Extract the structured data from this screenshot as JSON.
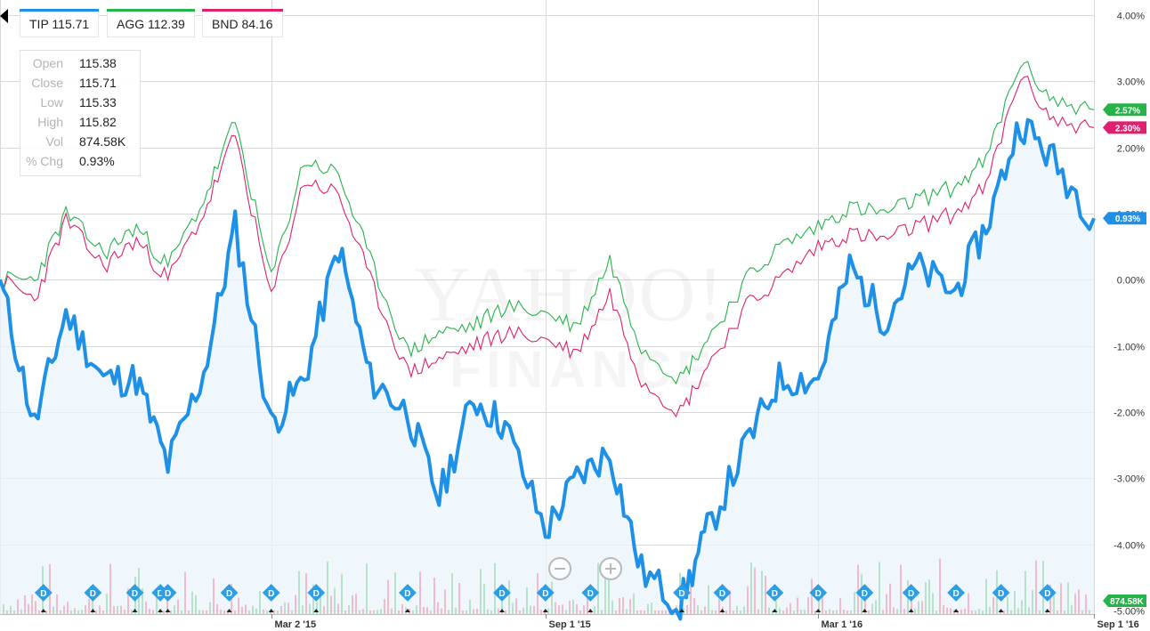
{
  "legend": [
    {
      "symbol": "TIP",
      "value": "115.71",
      "color": "#1e90e6"
    },
    {
      "symbol": "AGG",
      "value": "112.39",
      "color": "#26b34a"
    },
    {
      "symbol": "BND",
      "value": "84.16",
      "color": "#e0206e"
    }
  ],
  "ohlc": {
    "rows": [
      {
        "key": "Open",
        "value": "115.38"
      },
      {
        "key": "Close",
        "value": "115.71"
      },
      {
        "key": "Low",
        "value": "115.33"
      },
      {
        "key": "High",
        "value": "115.82"
      },
      {
        "key": "Vol",
        "value": "874.58K"
      },
      {
        "key": "% Chg",
        "value": "0.93%"
      }
    ]
  },
  "watermark": {
    "line1": "YAHOO!",
    "line2": "FINANCE"
  },
  "zoom": {
    "out": "zoom-out",
    "in": "zoom-in"
  },
  "colors": {
    "tip": "#1e90e6",
    "agg": "#26b34a",
    "bnd": "#e0206e",
    "area": "#eaf4fc",
    "grid": "#d8d8d8",
    "dividend": "#2f9de2"
  },
  "chart_data": {
    "type": "line",
    "x_ticks": [
      "Mar 2 '15",
      "Sep 1 '15",
      "Mar 1 '16",
      "Sep 1 '16"
    ],
    "y_ticks": [
      "4.00%",
      "3.00%",
      "2.00%",
      "1.00%",
      "0.00%",
      "-1.00%",
      "-2.00%",
      "-3.00%",
      "-4.00%",
      "-5.00%"
    ],
    "ylim": [
      -5,
      4
    ],
    "y_unit": "%",
    "x": [
      "2014-09-02",
      "2014-09-25",
      "2014-10-16",
      "2014-11-10",
      "2014-12-02",
      "2014-12-23",
      "2015-01-16",
      "2015-02-06",
      "2015-03-02",
      "2015-03-24",
      "2015-04-16",
      "2015-05-07",
      "2015-06-01",
      "2015-06-22",
      "2015-07-15",
      "2015-08-05",
      "2015-09-01",
      "2015-09-22",
      "2015-10-14",
      "2015-11-04",
      "2015-11-30",
      "2015-12-18",
      "2016-01-13",
      "2016-02-04",
      "2016-03-01",
      "2016-03-22",
      "2016-04-14",
      "2016-05-05",
      "2016-05-31",
      "2016-06-21",
      "2016-07-14",
      "2016-08-05",
      "2016-09-01"
    ],
    "series": [
      {
        "name": "TIP",
        "label": "0.93%",
        "values": [
          0.0,
          -2.2,
          -0.5,
          -1.5,
          -1.5,
          -2.8,
          -1.4,
          0.8,
          -2.2,
          -1.5,
          0.5,
          -1.5,
          -2.0,
          -3.3,
          -1.8,
          -2.2,
          -3.8,
          -3.0,
          -2.6,
          -4.4,
          -4.9,
          -3.8,
          -2.5,
          -1.5,
          -1.5,
          0.2,
          -0.6,
          0.2,
          -0.2,
          0.8,
          2.4,
          1.8,
          0.93
        ]
      },
      {
        "name": "AGG",
        "label": "2.57%",
        "values": [
          0.0,
          0.0,
          1.0,
          0.4,
          0.8,
          0.2,
          1.2,
          2.4,
          0.0,
          1.8,
          1.6,
          0.3,
          -1.1,
          -0.8,
          -0.7,
          -0.4,
          -0.5,
          -0.7,
          0.3,
          -1.0,
          -1.5,
          -0.9,
          0.0,
          0.5,
          0.8,
          1.1,
          1.0,
          1.2,
          1.4,
          1.8,
          3.3,
          2.7,
          2.57
        ]
      },
      {
        "name": "BND",
        "label": "2.30%",
        "values": [
          0.0,
          -0.3,
          0.9,
          0.2,
          0.6,
          0.0,
          1.0,
          2.2,
          -0.3,
          1.5,
          1.3,
          0.0,
          -1.4,
          -1.2,
          -1.0,
          -0.8,
          -0.9,
          -1.1,
          -0.2,
          -1.5,
          -2.0,
          -1.3,
          -0.4,
          0.0,
          0.5,
          0.7,
          0.6,
          0.8,
          1.0,
          1.4,
          3.1,
          2.4,
          2.3
        ]
      }
    ],
    "volume_label": "874.58K",
    "dividend_marker": "D",
    "dividend_dates": [
      "2014-10-01",
      "2014-11-03",
      "2014-12-01",
      "2014-12-18",
      "2014-12-23",
      "2015-02-02",
      "2015-03-02",
      "2015-04-01",
      "2015-06-01",
      "2015-08-03",
      "2015-09-01",
      "2015-10-01",
      "2015-12-01",
      "2015-12-28",
      "2016-02-01",
      "2016-03-01",
      "2016-04-01",
      "2016-05-02",
      "2016-06-01",
      "2016-07-01",
      "2016-08-01"
    ],
    "grid": true
  }
}
